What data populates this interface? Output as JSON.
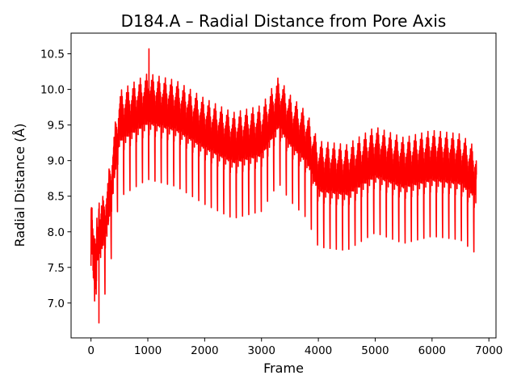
{
  "chart_data": {
    "type": "line",
    "title": "D184.A – Radial Distance from Pore Axis",
    "xlabel": "Frame",
    "ylabel": "Radial Distance (Å)",
    "xlim": [
      -350,
      7125
    ],
    "ylim": [
      6.51,
      10.79
    ],
    "x_ticks": [
      0,
      1000,
      2000,
      3000,
      4000,
      5000,
      6000,
      7000
    ],
    "y_ticks": [
      7.0,
      7.5,
      8.0,
      8.5,
      9.0,
      9.5,
      10.0,
      10.5
    ],
    "grid": false,
    "legend": "none",
    "series": [
      {
        "color": "#ff0000",
        "x_start": 0,
        "x_end": 6780,
        "profile": {
          "frame": [
            0,
            100,
            200,
            300,
            400,
            500,
            700,
            1000,
            1500,
            2000,
            2500,
            3000,
            3300,
            3500,
            3800,
            4000,
            4500,
            5000,
            5500,
            6000,
            6500,
            6780
          ],
          "mean": [
            7.7,
            7.6,
            7.8,
            8.1,
            8.7,
            9.3,
            9.4,
            9.55,
            9.45,
            9.2,
            9.0,
            9.1,
            9.5,
            9.25,
            9.0,
            8.6,
            8.55,
            8.8,
            8.65,
            8.75,
            8.7,
            8.5
          ]
        },
        "extremes": {
          "max": {
            "x": 1020,
            "y": 10.57
          },
          "min": {
            "x": 140,
            "y": 6.72
          }
        }
      }
    ]
  }
}
